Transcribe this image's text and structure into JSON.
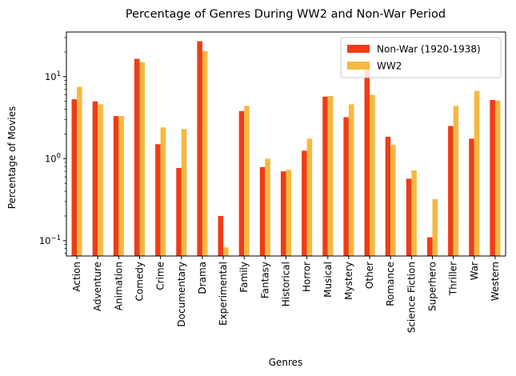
{
  "chart_data": {
    "type": "bar",
    "title": "Percentage of Genres During WW2 and Non-War Period",
    "xlabel": "Genres",
    "ylabel": "Percentage of Movies",
    "yscale": "log",
    "ylim": [
      0.065,
      35
    ],
    "yticks": [
      {
        "value": 0.1,
        "base": "10",
        "exp": "−1"
      },
      {
        "value": 1,
        "base": "10",
        "exp": "0"
      },
      {
        "value": 10,
        "base": "10",
        "exp": "1"
      }
    ],
    "legend_position": "top-right",
    "grid": false,
    "categories": [
      "Action",
      "Adventure",
      "Animation",
      "Comedy",
      "Crime",
      "Documentary",
      "Drama",
      "Experimental",
      "Family",
      "Fantasy",
      "Historical",
      "Horror",
      "Musical",
      "Mystery",
      "Other",
      "Romance",
      "Science Fiction",
      "Superhero",
      "Thriller",
      "War",
      "Western"
    ],
    "series": [
      {
        "name": "Non-War (1920-1938)",
        "color": "#f03c14",
        "values": [
          5.3,
          5.0,
          3.3,
          16.5,
          1.5,
          0.77,
          27.0,
          0.2,
          3.8,
          0.79,
          0.7,
          1.25,
          5.7,
          3.2,
          12.5,
          1.85,
          0.57,
          0.11,
          2.5,
          1.75,
          5.2
        ]
      },
      {
        "name": "WW2",
        "color": "#f5b942",
        "values": [
          7.5,
          4.6,
          3.3,
          15.0,
          2.4,
          2.3,
          20.5,
          0.083,
          4.4,
          1.0,
          0.73,
          1.75,
          5.8,
          4.6,
          6.0,
          1.47,
          0.72,
          0.32,
          4.4,
          6.7,
          5.1
        ]
      }
    ]
  }
}
